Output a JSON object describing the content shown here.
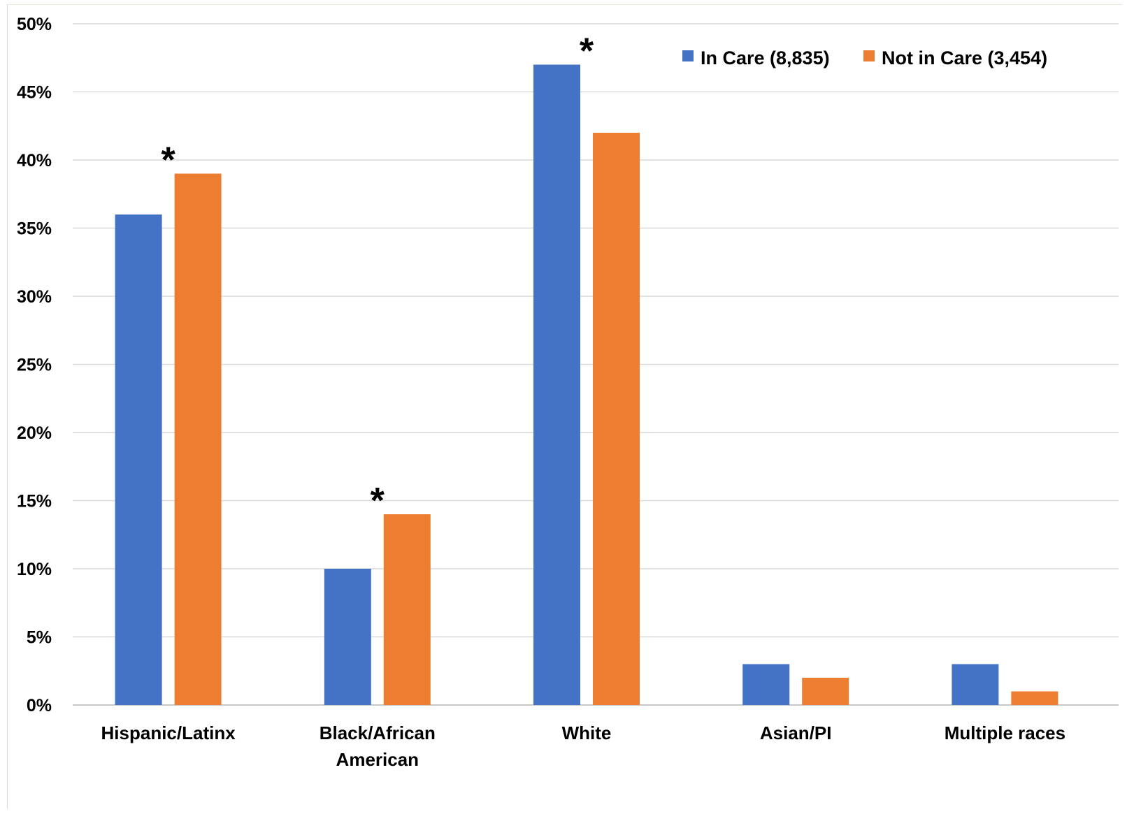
{
  "chart_data": {
    "type": "bar",
    "categories": [
      "Hispanic/Latinx",
      "Black/African American",
      "White",
      "Asian/PI",
      "Multiple races"
    ],
    "category_lines": [
      [
        "Hispanic/Latinx"
      ],
      [
        "Black/African",
        "American"
      ],
      [
        "White"
      ],
      [
        "Asian/PI"
      ],
      [
        "Multiple races"
      ]
    ],
    "series": [
      {
        "name": "In Care (8,835)",
        "color": "#4472C4",
        "values": [
          36,
          10,
          47,
          3,
          3
        ]
      },
      {
        "name": "Not in Care (3,454)",
        "color": "#ED7D31",
        "values": [
          39,
          14,
          42,
          2,
          1
        ]
      }
    ],
    "yticks": [
      "0%",
      "5%",
      "10%",
      "15%",
      "20%",
      "25%",
      "30%",
      "35%",
      "40%",
      "45%",
      "50%"
    ],
    "ylim": [
      0,
      50
    ],
    "grid": true,
    "legend_position": "top-right",
    "significance_marker": "*",
    "significant_categories": [
      "Hispanic/Latinx",
      "Black/African American",
      "White"
    ]
  }
}
